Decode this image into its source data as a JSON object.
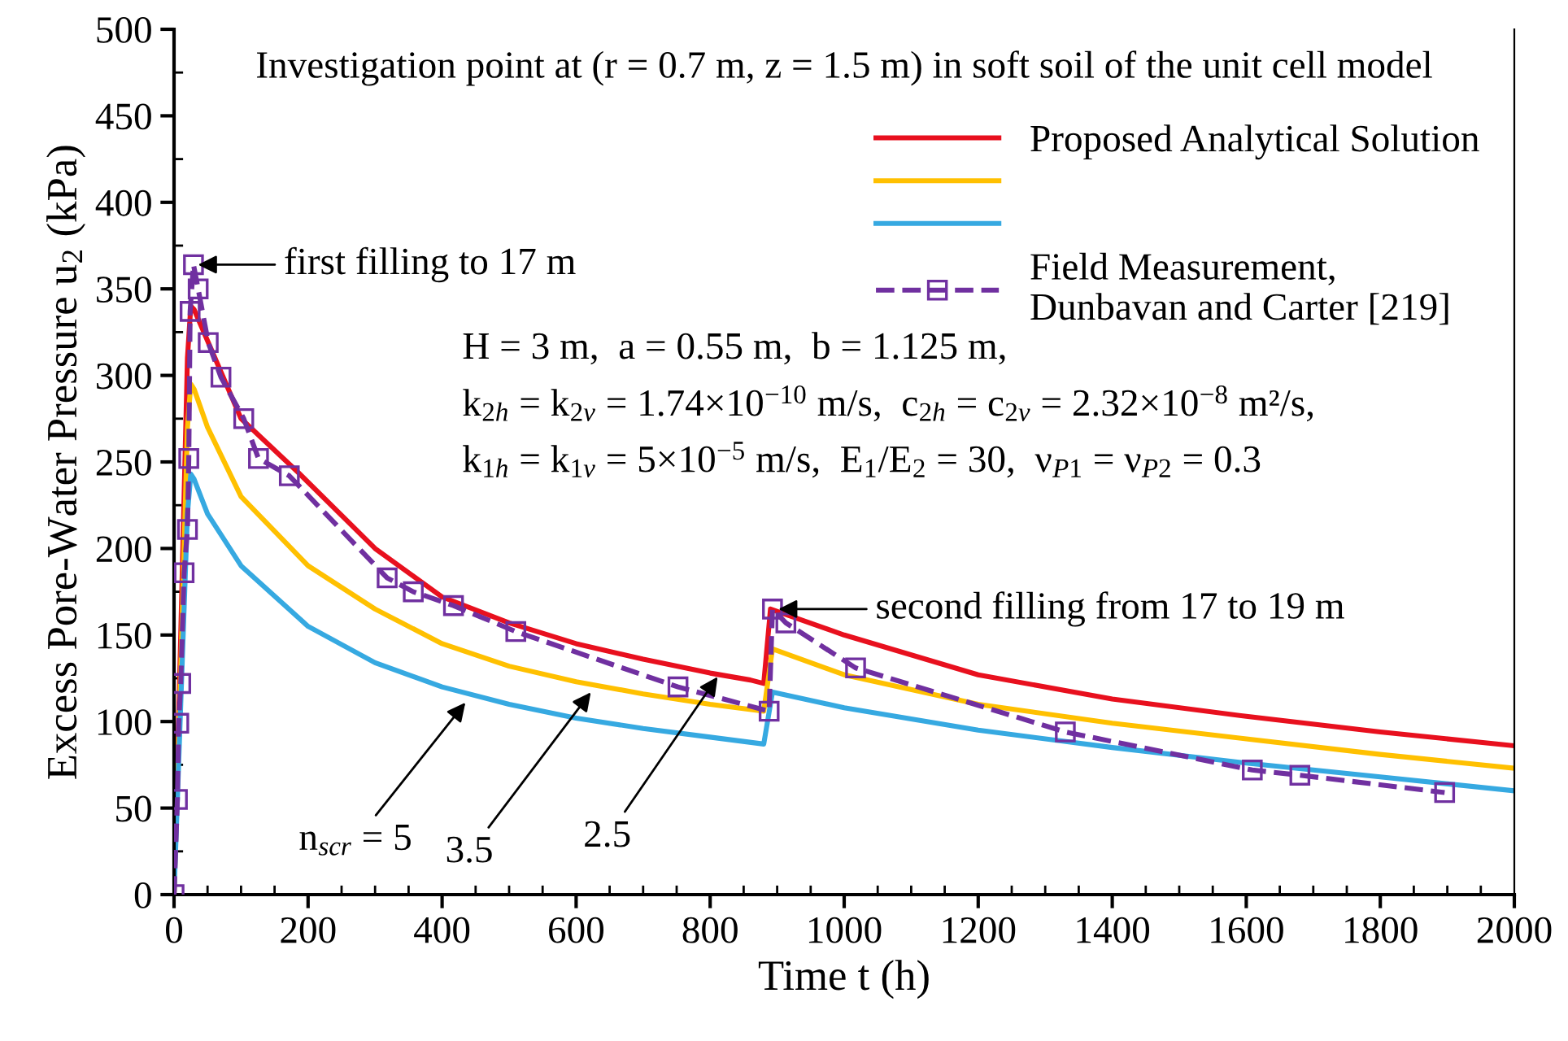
{
  "chart_data": {
    "type": "line",
    "xlabel": "Time t (h)",
    "ylabel": "Excess Pore-Water Pressure u$_{2}$ (kPa)",
    "xlim": [
      0,
      2000
    ],
    "xticks": [
      0,
      200,
      400,
      600,
      800,
      1000,
      1200,
      1400,
      1600,
      1800,
      2000
    ],
    "ylim": [
      0,
      500
    ],
    "yticks": [
      0,
      50,
      100,
      150,
      200,
      250,
      300,
      350,
      400,
      450,
      500
    ],
    "grid": false,
    "legend": "top right",
    "series": [
      {
        "name": "Proposed Analytical Solution",
        "color": "#e8101e",
        "marker": "none",
        "line_style": "solid",
        "x": [
          0,
          10,
          20,
          25,
          30,
          50,
          100,
          185,
          300,
          400,
          500,
          600,
          700,
          800,
          860,
          880,
          890,
          1000,
          1200,
          1400,
          1600,
          1800,
          2000
        ],
        "values": [
          0,
          150,
          310,
          340,
          338,
          320,
          275,
          244,
          200,
          172,
          157,
          145,
          136,
          128,
          124,
          122,
          165,
          150,
          127,
          113,
          103,
          94,
          86
        ]
      },
      {
        "color": "#ffc000",
        "marker": "none",
        "line_style": "solid",
        "x": [
          0,
          10,
          20,
          25,
          30,
          50,
          100,
          200,
          300,
          400,
          500,
          600,
          700,
          800,
          880,
          893,
          1000,
          1200,
          1400,
          1600,
          1800,
          2000
        ],
        "values": [
          0,
          130,
          270,
          295,
          292,
          270,
          230,
          190,
          165,
          145,
          132,
          123,
          116,
          110,
          106,
          142,
          127,
          110,
          99,
          90,
          81,
          73
        ]
      },
      {
        "color": "#36a9e1",
        "marker": "none",
        "line_style": "solid",
        "x": [
          0,
          10,
          20,
          25,
          30,
          50,
          100,
          200,
          300,
          400,
          500,
          600,
          700,
          800,
          880,
          893,
          1000,
          1200,
          1400,
          1600,
          1800,
          2000
        ],
        "values": [
          0,
          110,
          220,
          243,
          240,
          220,
          190,
          155,
          134,
          120,
          110,
          102,
          96,
          91,
          87,
          117,
          108,
          95,
          85,
          76,
          68,
          60
        ]
      },
      {
        "name": "Field Measurement,\nDunbavan and Carter [219]",
        "color": "#7030a0",
        "marker": "square",
        "line_style": "dashed",
        "x": [
          0,
          5,
          7,
          10,
          15,
          20,
          22,
          24,
          29,
          36,
          51,
          70,
          104,
          126,
          172,
          318,
          357,
          417,
          510,
          752,
          888,
          893,
          913,
          1017,
          1330,
          1609,
          1680,
          1896
        ],
        "values": [
          0,
          55,
          99,
          122,
          186,
          211,
          252,
          337,
          364,
          350,
          319,
          299,
          275,
          252,
          242,
          183,
          175,
          167,
          152,
          120,
          106,
          165,
          157,
          131,
          94,
          72,
          69,
          59
        ]
      }
    ],
    "annotations": [
      "Investigation point at (r = 0.7 m, z = 1.5 m) in soft soil of the unit cell model",
      "H = 3 m,  a = 0.55 m,  b = 1.125 m,",
      "k$_{2h}$ = k$_{2v}$ = 1.74×10$^{−10}$ m/s,  c$_{2h}$ = c$_{2v}$ = 2.32×10$^{−8}$ m²/s,",
      "k$_{1h}$ = k$_{1v}$ = 5×10$^{−5}$ m/s,  E$_{1}$/E$_{2}$ = 30,  ν$_{P1}$ = ν$_{P2}$ = 0.3",
      {
        "text": "first filling to 17 m",
        "x": 29,
        "y": 364
      },
      {
        "text": "second filling from 17 to 19 m",
        "x": 895,
        "y": 165
      },
      {
        "text": "n$_{scr}$ = 5",
        "x": 439,
        "y": 113
      },
      {
        "text": "3.5",
        "x": 626,
        "y": 119
      },
      {
        "text": "2.5",
        "x": 815,
        "y": 128
      }
    ]
  }
}
